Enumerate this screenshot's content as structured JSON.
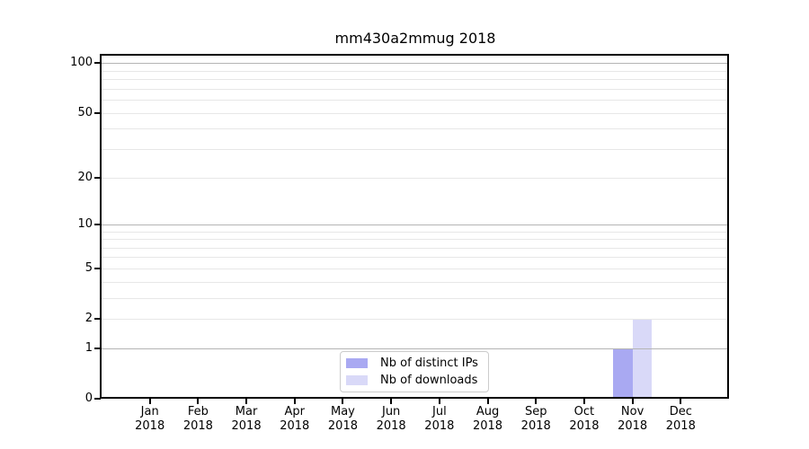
{
  "title": "mm430a2mmug 2018",
  "chart_data": {
    "type": "bar",
    "title": "mm430a2mmug 2018",
    "categories": [
      "Jan",
      "Feb",
      "Mar",
      "Apr",
      "May",
      "Jun",
      "Jul",
      "Aug",
      "Sep",
      "Oct",
      "Nov",
      "Dec"
    ],
    "year": "2018",
    "series": [
      {
        "name": "Nb of distinct IPs",
        "color": "#a9a9f2",
        "values": [
          0,
          0,
          0,
          0,
          0,
          0,
          0,
          0,
          0,
          0,
          1,
          0
        ]
      },
      {
        "name": "Nb of downloads",
        "color": "#d9d9f8",
        "values": [
          0,
          0,
          0,
          0,
          0,
          0,
          0,
          0,
          0,
          0,
          2,
          0
        ]
      }
    ],
    "yscale": "log1p",
    "ylim": [
      0,
      111
    ],
    "yticks_labeled": [
      0,
      1,
      2,
      5,
      10,
      20,
      50,
      100
    ],
    "yticks_major_grid": [
      1,
      10,
      100
    ],
    "yticks_minor_grid": [
      2,
      3,
      4,
      5,
      6,
      7,
      8,
      9,
      20,
      30,
      40,
      50,
      60,
      70,
      80,
      90
    ],
    "grid": true,
    "legend_position": "lower center",
    "bar_width_fraction": 0.4
  },
  "colors": {
    "background": "#ffffff",
    "spine": "#000000",
    "major_grid": "#b4b4b4",
    "minor_grid": "#e7e7e7",
    "bar_distinct_ips": "#a9a9f2",
    "bar_downloads": "#d9d9f8",
    "legend_border": "#cccccc"
  }
}
